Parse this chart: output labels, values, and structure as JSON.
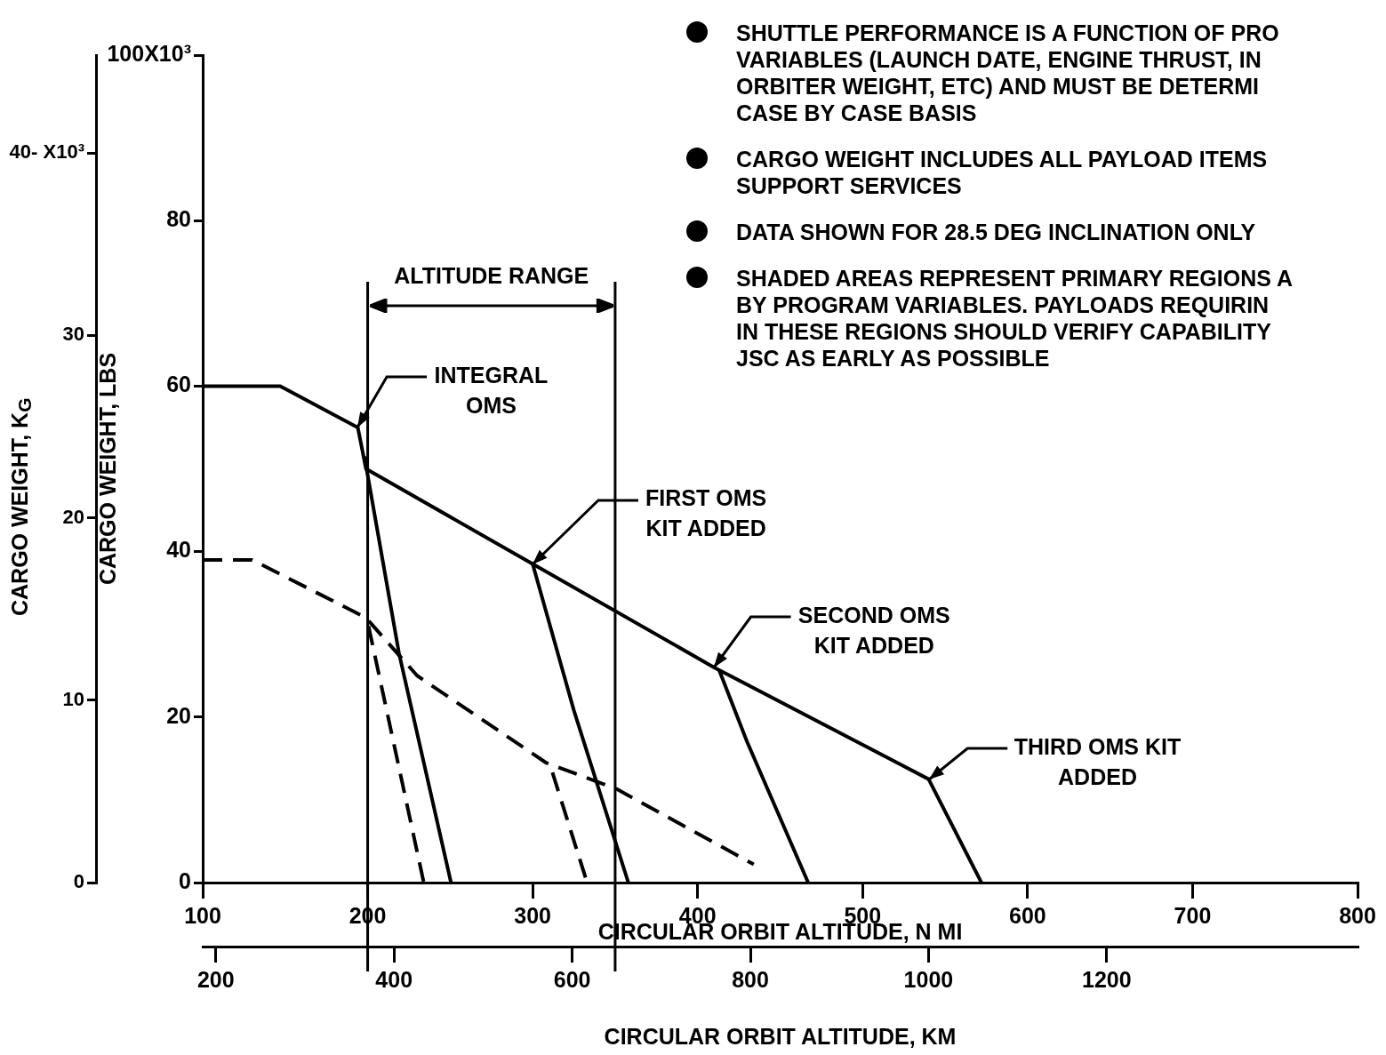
{
  "chart_data": {
    "type": "line",
    "xlabel": "CIRCULAR ORBIT ALTITUDE, N MI",
    "x2label": "CIRCULAR ORBIT ALTITUDE, KM",
    "ylabel": "CARGO WEIGHT, LBS",
    "y2label": "CARGO WEIGHT, K$_{G}$",
    "xlim": [
      100,
      800
    ],
    "xticks": [
      100,
      200,
      300,
      400,
      500,
      600,
      700,
      800
    ],
    "x2lim": [
      185.2,
      1481.6
    ],
    "x2ticks": [
      200,
      400,
      600,
      800,
      1000,
      1200
    ],
    "ylim": [
      0,
      100
    ],
    "yticks": [
      0,
      20,
      40,
      60,
      80,
      {
        "value": 100,
        "label": "100X10³"
      }
    ],
    "y2lim": [
      0,
      45.36
    ],
    "y2ticks": [
      0,
      10,
      20,
      30,
      {
        "value": 40,
        "label": "40- X10³"
      }
    ],
    "grid": false,
    "legend": false,
    "marker": "none",
    "series": [
      {
        "color": "#000000",
        "line_style": "solid",
        "x": [
          100,
          147,
          194,
          199,
          300,
          410,
          540,
          572
        ],
        "values": [
          60,
          60,
          55,
          50,
          38.5,
          26,
          12.5,
          0
        ]
      },
      {
        "color": "#000000",
        "line_style": "dashed",
        "x": [
          100,
          130,
          199,
          230,
          308,
          351,
          434
        ],
        "values": [
          39,
          39,
          32,
          25,
          14.5,
          11.3,
          2.2
        ]
      },
      {
        "color": "#000000",
        "line_style": "solid",
        "x": [
          198,
          219,
          250.5
        ],
        "values": [
          51.5,
          27.7,
          0
        ]
      },
      {
        "color": "#000000",
        "line_style": "dashed",
        "x": [
          200.5,
          234
        ],
        "values": [
          31,
          0
        ]
      },
      {
        "color": "#000000",
        "line_style": "solid",
        "x": [
          300,
          325,
          358
        ],
        "values": [
          38.5,
          20.8,
          0
        ]
      },
      {
        "color": "#000000",
        "line_style": "dashed",
        "x": [
          312,
          333
        ],
        "values": [
          13.3,
          0
        ]
      },
      {
        "color": "#000000",
        "line_style": "solid",
        "x": [
          413,
          430,
          467
        ],
        "values": [
          25.7,
          17,
          0
        ]
      }
    ],
    "ref_lines": [
      {
        "axis": "x",
        "value": 200,
        "color": "#000000"
      },
      {
        "axis": "x",
        "value": 350,
        "color": "#000000"
      }
    ],
    "annotations": [
      "ALTITUDE RANGE",
      {
        "text": "INTEGRAL\nOMS",
        "x": 194,
        "y": 55
      },
      {
        "text": "FIRST OMS\nKIT ADDED",
        "x": 300,
        "y": 38.5
      },
      {
        "text": "SECOND OMS\nKIT ADDED",
        "x": 410,
        "y": 26
      },
      {
        "text": "THIRD OMS KIT\nADDED",
        "x": 540,
        "y": 12.5
      },
      "SHUTTLE PERFORMANCE IS A FUNCTION OF PRO\nVARIABLES (LAUNCH DATE, ENGINE THRUST, IN\nORBITER WEIGHT, ETC) AND MUST BE DETERMI\nCASE BY CASE BASIS",
      "CARGO WEIGHT INCLUDES ALL PAYLOAD ITEMS\nSUPPORT SERVICES",
      "DATA SHOWN FOR 28.5 DEG INCLINATION ONLY",
      "SHADED AREAS REPRESENT PRIMARY REGIONS A\nBY PROGRAM VARIABLES. PAYLOADS REQUIRIN\nIN THESE REGIONS SHOULD VERIFY CAPABILITY\nJSC AS EARLY AS POSSIBLE"
    ]
  }
}
